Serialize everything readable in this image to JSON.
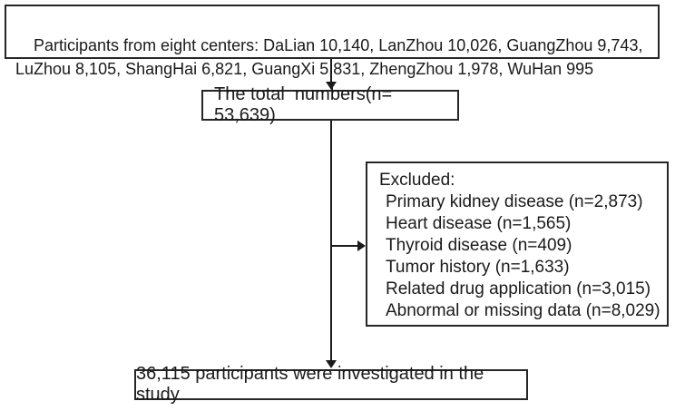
{
  "diagram": {
    "title": "Study participant flow diagram",
    "colors": {
      "background": "#ffffff",
      "ink": "#1a1a1a",
      "box_border": "#262626"
    },
    "boxes": {
      "centers": {
        "text": "Participants from eight centers: DaLian 10,140, LanZhou 10,026, GuangZhou 9,743, LuZhou 8,105, ShangHai 6,821, GuangXi 5,831, ZhengZhou 1,978, WuHan 995"
      },
      "total": {
        "text": "The total  numbers(n= 53,639)"
      },
      "excluded": {
        "title": "Excluded:",
        "items": [
          "Primary kidney disease (n=2,873)",
          "Heart disease (n=1,565)",
          "Thyroid disease (n=409)",
          "Tumor history (n=1,633)",
          "Related drug application (n=3,015)",
          "Abnormal or missing data (n=8,029)"
        ]
      },
      "result": {
        "text": "36,115 participants were investigated in the study"
      }
    }
  }
}
